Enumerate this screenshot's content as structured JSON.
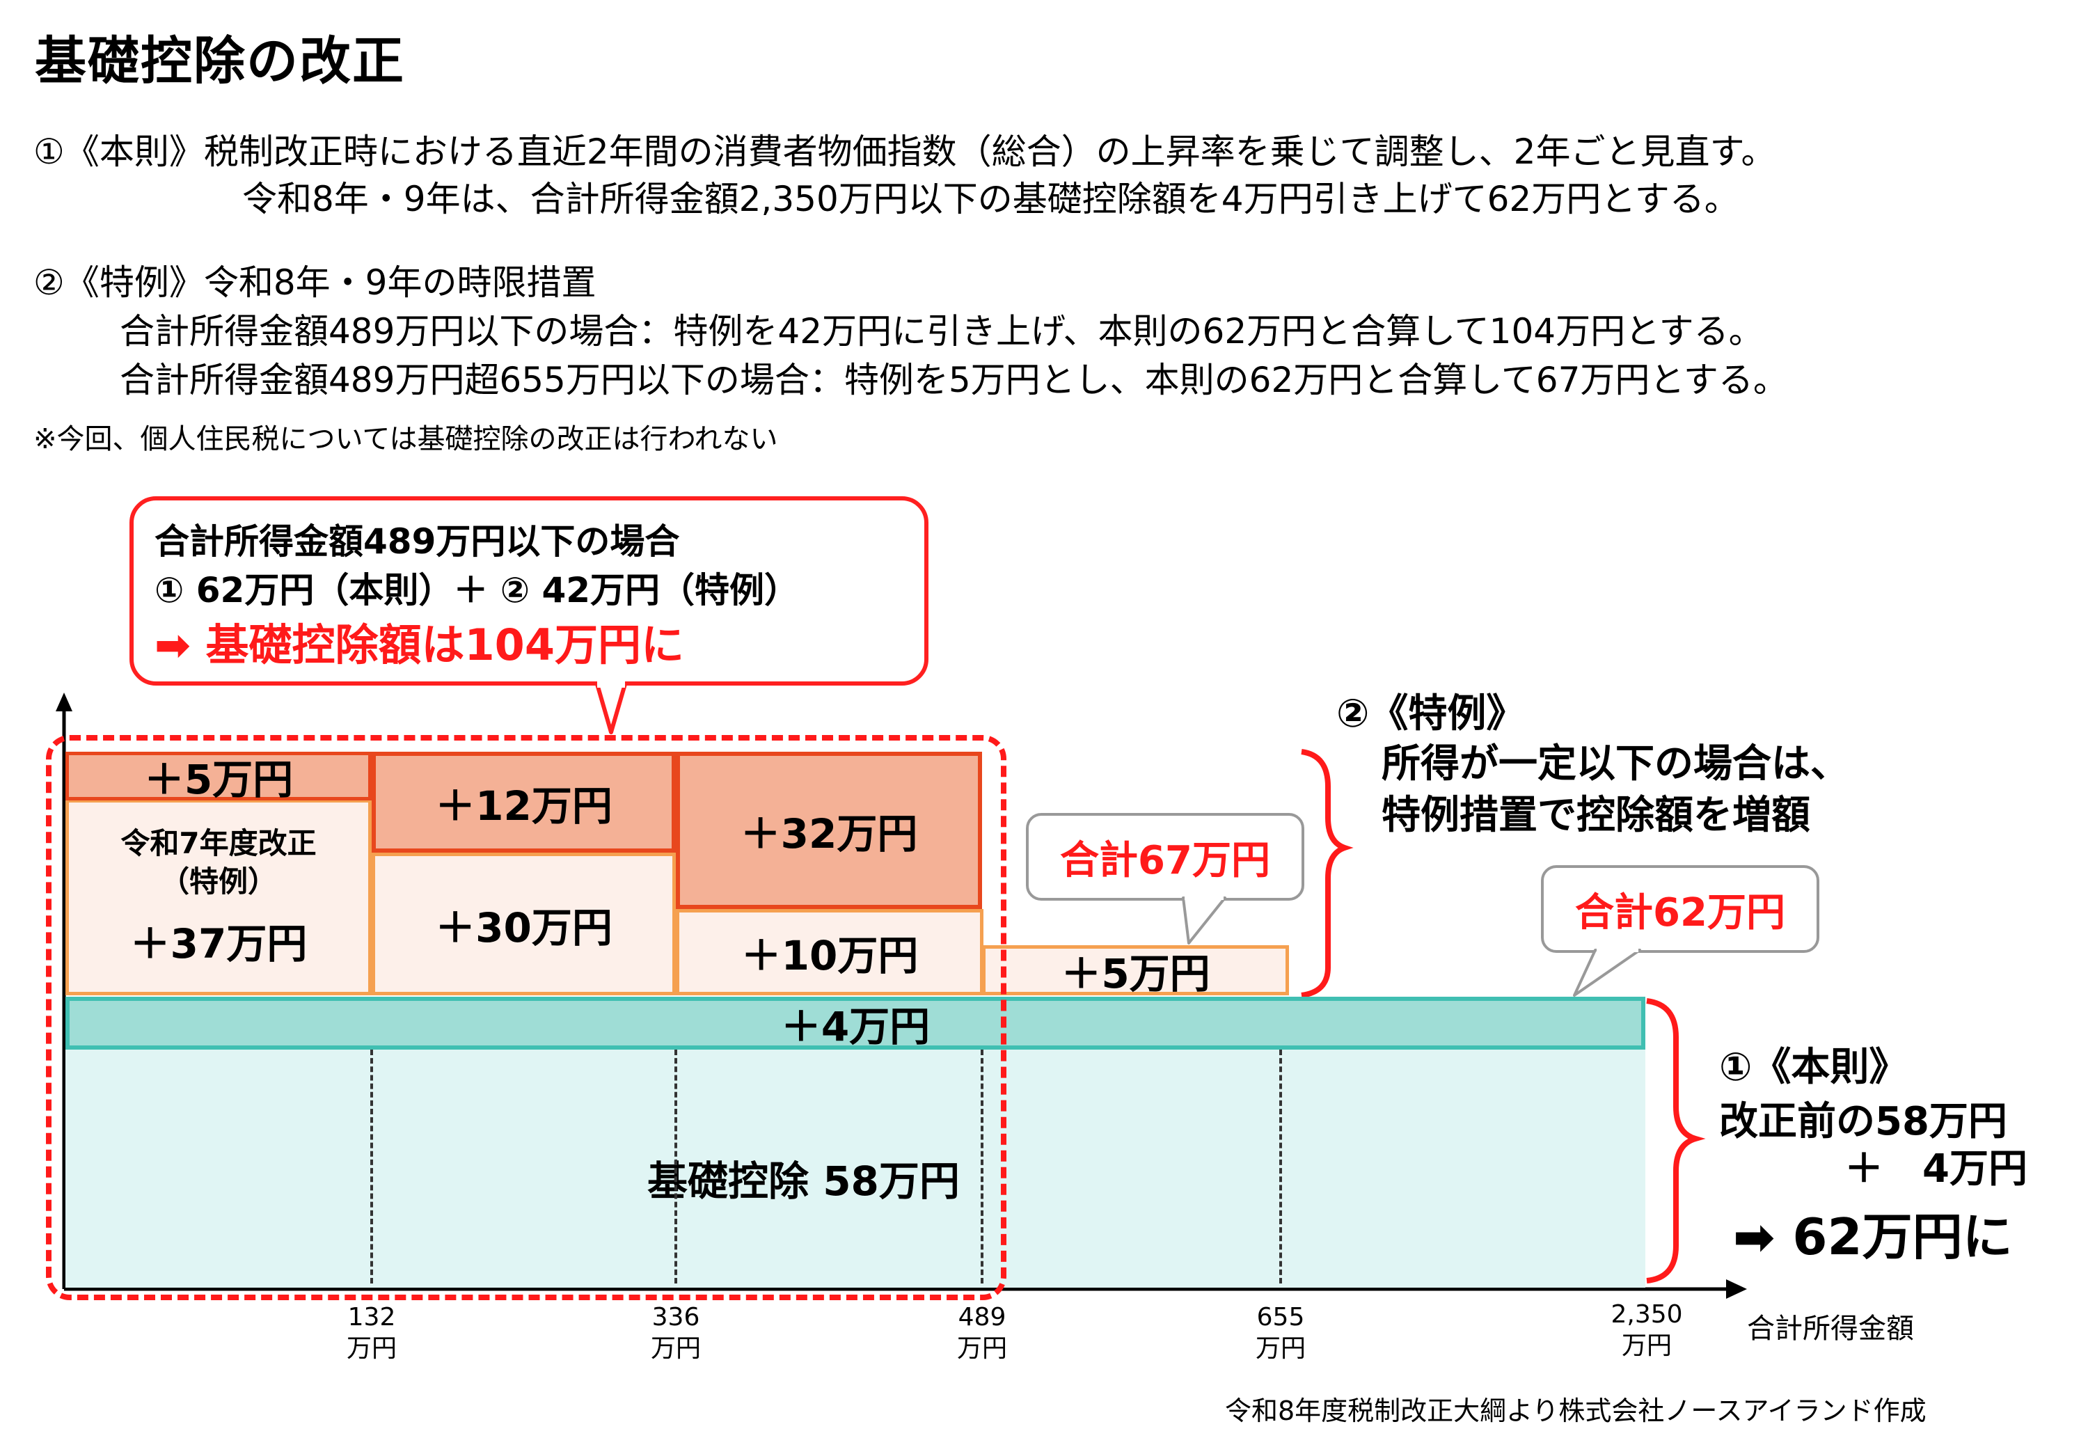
{
  "title": "基礎控除の改正",
  "rules": {
    "honsoku_line1": "①《本則》税制改正時における直近2年間の消費者物価指数（総合）の上昇率を乗じて調整し、2年ごと見直す。",
    "honsoku_line2": "令和8年・9年は、合計所得金額2,350万円以下の基礎控除額を4万円引き上げて62万円とする。",
    "tokurei_line1": "②《特例》令和8年・9年の時限措置",
    "tokurei_line2": "合計所得金額489万円以下の場合：特例を42万円に引き上げ、本則の62万円と合算して104万円とする。",
    "tokurei_line3": "合計所得金額489万円超655万円以下の場合：特例を5万円とし、本則の62万円と合算して67万円とする。",
    "note": "※今回、個人住民税については基礎控除の改正は行われない"
  },
  "callout": {
    "line1": "合計所得金額489万円以下の場合",
    "line2": "① 62万円（本則）＋ ② 42万円（特例）",
    "line3": "➡ 基礎控除額は104万円に"
  },
  "chart": {
    "segments": {
      "r7_plus5": "＋5万円",
      "r7_label": "令和7年度改正",
      "r7_sub": "（特例）",
      "r7_plus37": "＋37万円",
      "b2_plus12": "＋12万円",
      "b2_plus30": "＋30万円",
      "b3_plus32": "＋32万円",
      "b3_plus10": "＋10万円",
      "b4_plus5": "＋5万円",
      "teal_plus4": "＋4万円",
      "base_label": "基礎控除 58万円"
    },
    "ticks": [
      {
        "value": "132",
        "unit": "万円"
      },
      {
        "value": "336",
        "unit": "万円"
      },
      {
        "value": "489",
        "unit": "万円"
      },
      {
        "value": "655",
        "unit": "万円"
      },
      {
        "value": "2,350",
        "unit": "万円"
      }
    ],
    "x_axis_label": "合計所得金額",
    "bubble_67": "合計67万円",
    "bubble_62": "合計62万円",
    "tokurei_title": "②《特例》",
    "tokurei_desc1": "所得が一定以下の場合は、",
    "tokurei_desc2": "特例措置で控除額を増額",
    "honsoku_title": "①《本則》",
    "honsoku_desc1": "改正前の58万円",
    "honsoku_desc2": "＋　4万円",
    "honsoku_result": "➡ 62万円に"
  },
  "source": "令和8年度税制改正大綱より株式会社ノースアイランド作成",
  "colors": {
    "red": "#ff1a1a",
    "orange_border": "#f5a050",
    "dark_orange": "#e8471d",
    "teal": "#40bfb2"
  }
}
